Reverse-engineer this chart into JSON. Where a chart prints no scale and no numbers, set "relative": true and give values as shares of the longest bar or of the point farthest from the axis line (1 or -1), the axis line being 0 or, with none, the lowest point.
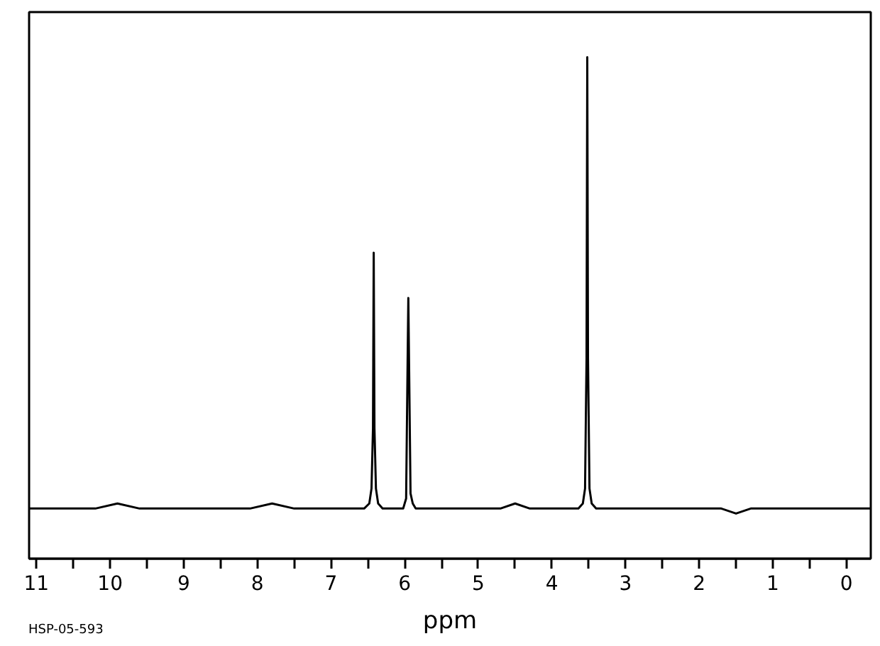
{
  "chart_data": {
    "type": "line",
    "relative": true,
    "xlabel": "ppm",
    "annotations": [
      "HSP-05-593"
    ],
    "x": [
      11.1,
      10.8,
      10.5,
      10.2,
      9.9,
      9.6,
      9.3,
      9.0,
      8.7,
      8.4,
      8.1,
      7.8,
      7.5,
      7.2,
      6.9,
      6.7,
      6.55,
      6.48,
      6.45,
      6.43,
      6.42,
      6.41,
      6.39,
      6.36,
      6.3,
      6.2,
      6.1,
      6.02,
      5.98,
      5.96,
      5.95,
      5.94,
      5.92,
      5.89,
      5.85,
      5.7,
      5.5,
      5.3,
      5.1,
      4.9,
      4.7,
      4.5,
      4.3,
      4.1,
      3.9,
      3.75,
      3.64,
      3.58,
      3.55,
      3.53,
      3.52,
      3.51,
      3.49,
      3.46,
      3.4,
      3.3,
      3.1,
      2.9,
      2.7,
      2.5,
      2.3,
      2.1,
      1.9,
      1.7,
      1.5,
      1.3,
      1.1,
      0.9,
      0.7,
      0.5,
      0.3,
      0.1,
      -0.1,
      -0.33
    ],
    "series": [
      {
        "color": "#000000",
        "values": [
          0.1,
          0.1,
          0.1,
          0.1,
          0.11,
          0.1,
          0.1,
          0.1,
          0.1,
          0.1,
          0.1,
          0.11,
          0.1,
          0.1,
          0.1,
          0.1,
          0.1,
          0.11,
          0.14,
          0.26,
          0.61,
          0.26,
          0.14,
          0.11,
          0.1,
          0.1,
          0.1,
          0.1,
          0.12,
          0.39,
          0.52,
          0.39,
          0.13,
          0.11,
          0.1,
          0.1,
          0.1,
          0.1,
          0.1,
          0.1,
          0.1,
          0.11,
          0.1,
          0.1,
          0.1,
          0.1,
          0.1,
          0.11,
          0.14,
          0.4,
          1,
          0.4,
          0.14,
          0.11,
          0.1,
          0.1,
          0.1,
          0.1,
          0.1,
          0.1,
          0.1,
          0.1,
          0.1,
          0.1,
          0.09,
          0.1,
          0.1,
          0.1,
          0.1,
          0.1,
          0.1,
          0.1,
          0.1,
          0.1
        ]
      }
    ],
    "xlim": [
      11.1,
      -0.33
    ],
    "xticks": [
      11,
      {
        "value": 10.5,
        "label": null
      },
      10,
      {
        "value": 9.5,
        "label": null
      },
      9,
      {
        "value": 8.5,
        "label": null
      },
      8,
      {
        "value": 7.5,
        "label": null
      },
      7,
      {
        "value": 6.5,
        "label": null
      },
      6,
      {
        "value": 5.5,
        "label": null
      },
      5,
      {
        "value": 4.5,
        "label": null
      },
      4,
      {
        "value": 3.5,
        "label": null
      },
      3,
      {
        "value": 2.5,
        "label": null
      },
      2,
      {
        "value": 1.5,
        "label": null
      },
      1,
      {
        "value": 0.5,
        "label": null
      },
      0
    ],
    "tick_labels": "x"
  }
}
